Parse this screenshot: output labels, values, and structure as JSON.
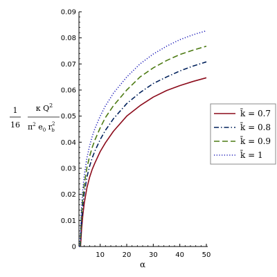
{
  "chart_data": {
    "type": "line",
    "xlabel": "α",
    "ylabel": {
      "coef_num": "1",
      "coef_den": "16",
      "frac_num": "κ Q",
      "frac_num_sup": "2",
      "frac_den": "π",
      "frac_den_sup": "2",
      "frac_den_mid": " e",
      "frac_den_sub0": "0",
      "frac_den_r": " r",
      "frac_den_rsub": "b",
      "frac_den_rsup": "2"
    },
    "xlim": [
      2,
      50
    ],
    "ylim": [
      0,
      0.09
    ],
    "xticks": [
      "10",
      "20",
      "30",
      "40",
      "50"
    ],
    "yticks": [
      "0",
      "0.01",
      "0.02",
      "0.03",
      "0.04",
      "0.05",
      "0.06",
      "0.07",
      "0.08",
      "0.09"
    ],
    "legend_position": "right",
    "series": [
      {
        "name": "k̄ = 0.7",
        "color": "#8b0a1a",
        "dash": "solid",
        "x": [
          2.6,
          3,
          3.5,
          4,
          5,
          6,
          7,
          8,
          10,
          12,
          15,
          20,
          25,
          30,
          35,
          40,
          45,
          50
        ],
        "y": [
          0.0,
          0.0068,
          0.0124,
          0.0166,
          0.0225,
          0.0265,
          0.0296,
          0.032,
          0.0364,
          0.0398,
          0.0442,
          0.05,
          0.054,
          0.0573,
          0.0598,
          0.0617,
          0.0633,
          0.0647
        ]
      },
      {
        "name": "k̄ = 0.8",
        "color": "#00205b",
        "dash": "dashdot",
        "x": [
          2.5,
          3,
          3.5,
          4,
          5,
          6,
          7,
          8,
          10,
          12,
          15,
          20,
          25,
          30,
          35,
          40,
          45,
          50
        ],
        "y": [
          0.0,
          0.0098,
          0.016,
          0.0204,
          0.0266,
          0.0307,
          0.034,
          0.0366,
          0.041,
          0.0446,
          0.049,
          0.0548,
          0.059,
          0.0625,
          0.065,
          0.0673,
          0.0692,
          0.0708
        ]
      },
      {
        "name": "k̄ = 0.9",
        "color": "#4c7a12",
        "dash": "longdash",
        "x": [
          2.4,
          3,
          3.5,
          4,
          5,
          6,
          7,
          8,
          10,
          12,
          15,
          20,
          25,
          30,
          35,
          40,
          45,
          50
        ],
        "y": [
          0.0,
          0.0128,
          0.0193,
          0.0238,
          0.0302,
          0.0345,
          0.038,
          0.0408,
          0.0455,
          0.0495,
          0.054,
          0.06,
          0.065,
          0.0685,
          0.0713,
          0.0736,
          0.0753,
          0.0768
        ]
      },
      {
        "name": "k̄ = 1",
        "color": "#1a1ab8",
        "dash": "dotted",
        "x": [
          2.3,
          3,
          3.5,
          4,
          5,
          6,
          7,
          8,
          10,
          12,
          15,
          20,
          25,
          30,
          35,
          40,
          45,
          50
        ],
        "y": [
          0.0,
          0.0155,
          0.0225,
          0.0272,
          0.034,
          0.0385,
          0.0422,
          0.0452,
          0.05,
          0.054,
          0.0588,
          0.065,
          0.07,
          0.0738,
          0.0768,
          0.0793,
          0.0812,
          0.0827
        ]
      }
    ]
  }
}
